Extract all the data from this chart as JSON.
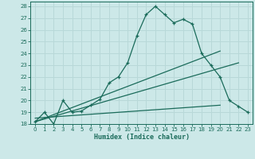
{
  "xlabel": "Humidex (Indice chaleur)",
  "bg_color": "#cce8e8",
  "grid_color": "#b8d8d8",
  "line_color": "#1a6b5a",
  "xlim": [
    -0.5,
    23.5
  ],
  "ylim": [
    18,
    28.4
  ],
  "xticks": [
    0,
    1,
    2,
    3,
    4,
    5,
    6,
    7,
    8,
    9,
    10,
    11,
    12,
    13,
    14,
    15,
    16,
    17,
    18,
    19,
    20,
    21,
    22,
    23
  ],
  "yticks": [
    18,
    19,
    20,
    21,
    22,
    23,
    24,
    25,
    26,
    27,
    28
  ],
  "main_x": [
    0,
    1,
    2,
    3,
    4,
    5,
    6,
    7,
    8,
    9,
    10,
    11,
    12,
    13,
    14,
    15,
    16,
    17,
    18,
    19,
    20,
    21,
    22,
    23
  ],
  "main_y": [
    18.2,
    19.0,
    18.0,
    20.0,
    19.0,
    19.1,
    19.6,
    20.1,
    21.5,
    22.0,
    23.2,
    25.5,
    27.3,
    28.0,
    27.3,
    26.6,
    26.9,
    26.5,
    24.0,
    23.0,
    22.0,
    20.0,
    19.5,
    19.0
  ],
  "line1_x": [
    0,
    20
  ],
  "line1_y": [
    18.2,
    24.2
  ],
  "line2_x": [
    0,
    22
  ],
  "line2_y": [
    18.2,
    23.2
  ],
  "line3_x": [
    0,
    20
  ],
  "line3_y": [
    18.5,
    19.6
  ]
}
